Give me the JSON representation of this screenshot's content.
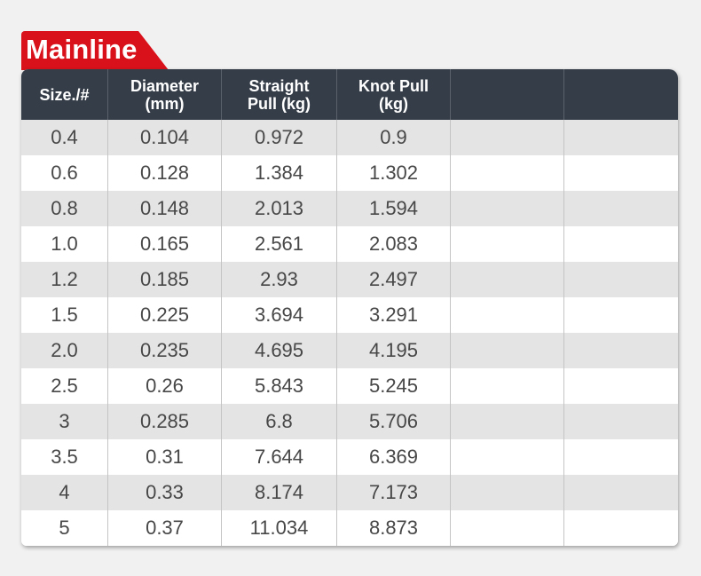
{
  "title": "Mainline",
  "colors": {
    "tab": "#d9111b",
    "header": "#353d48",
    "row_alt": "#e4e4e4"
  },
  "headers": [
    "Size./#",
    "Diameter\n(mm)",
    "Straight\nPull (kg)",
    "Knot Pull\n(kg)",
    "",
    ""
  ],
  "rows": [
    [
      "0.4",
      "0.104",
      "0.972",
      "0.9"
    ],
    [
      "0.6",
      "0.128",
      "1.384",
      "1.302"
    ],
    [
      "0.8",
      "0.148",
      "2.013",
      "1.594"
    ],
    [
      "1.0",
      "0.165",
      "2.561",
      "2.083"
    ],
    [
      "1.2",
      "0.185",
      "2.93",
      "2.497"
    ],
    [
      "1.5",
      "0.225",
      "3.694",
      "3.291"
    ],
    [
      "2.0",
      "0.235",
      "4.695",
      "4.195"
    ],
    [
      "2.5",
      "0.26",
      "5.843",
      "5.245"
    ],
    [
      "3",
      "0.285",
      "6.8",
      "5.706"
    ],
    [
      "3.5",
      "0.31",
      "7.644",
      "6.369"
    ],
    [
      "4",
      "0.33",
      "8.174",
      "7.173"
    ],
    [
      "5",
      "0.37",
      "11.034",
      "8.873"
    ]
  ]
}
